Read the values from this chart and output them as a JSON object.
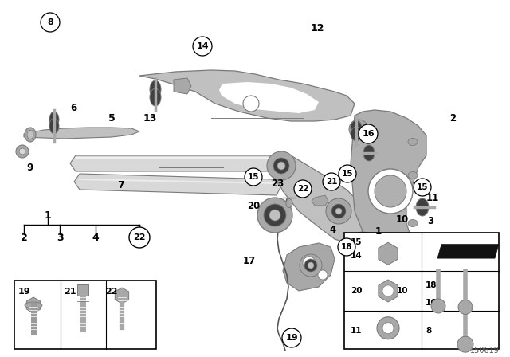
{
  "bg_color": "#ffffff",
  "diagram_id": "150619",
  "fig_width": 6.4,
  "fig_height": 4.48,
  "dpi": 100,
  "gray_main": "#c0c0c0",
  "gray_dark": "#7a7a7a",
  "gray_light": "#d8d8d8",
  "gray_mid": "#a8a8a8",
  "gray_knuckle": "#b0b0b0",
  "black": "#000000",
  "dark_rubber": "#404040",
  "diagram_number": "150619"
}
